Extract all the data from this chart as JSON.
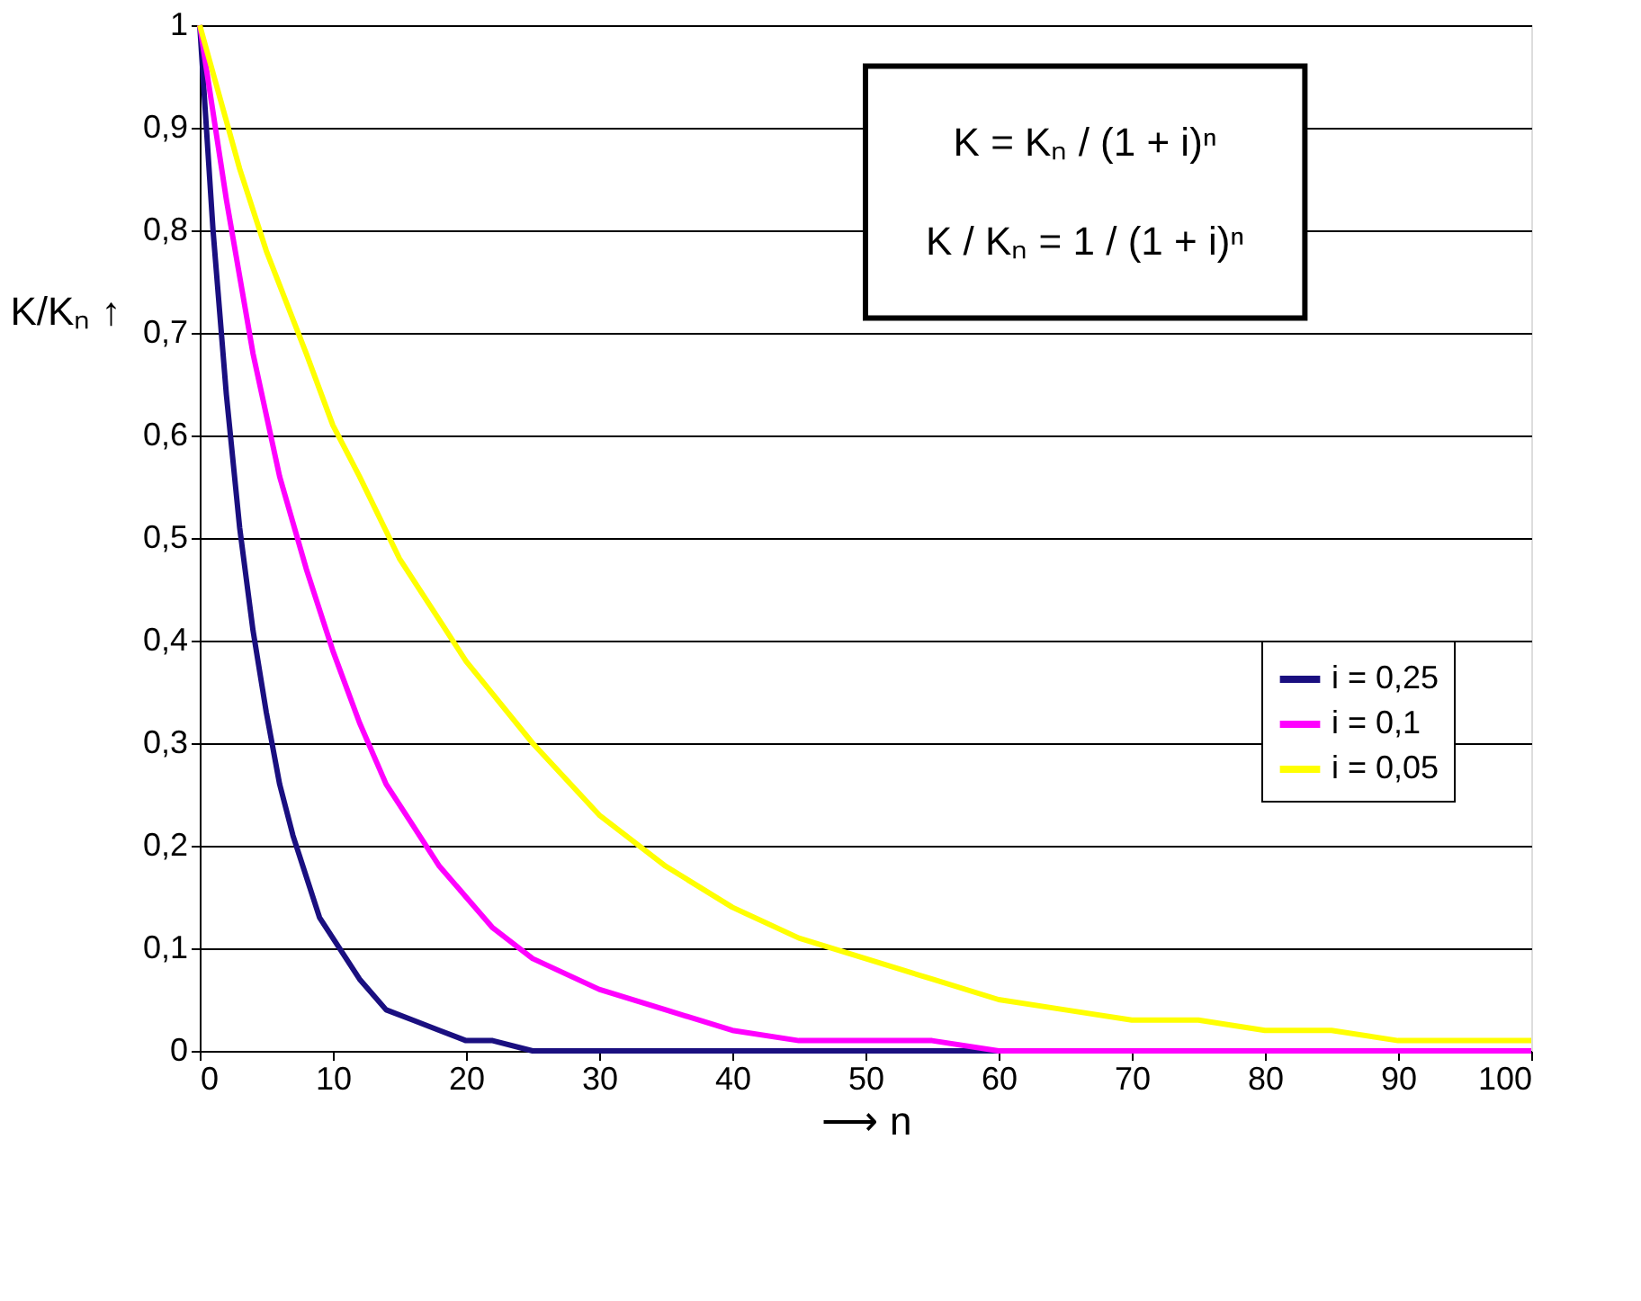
{
  "chart_data": {
    "type": "line",
    "xlabel": "⟶ n",
    "ylabel": "K/Kₙ ↑",
    "xlim": [
      0,
      100
    ],
    "xticks": [
      0,
      10,
      20,
      30,
      40,
      50,
      60,
      70,
      80,
      90,
      100
    ],
    "ylim": [
      0,
      1
    ],
    "yticks": [
      {
        "value": 0,
        "label": "0"
      },
      {
        "value": 0.1,
        "label": "0,1"
      },
      {
        "value": 0.2,
        "label": "0,2"
      },
      {
        "value": 0.3,
        "label": "0,3"
      },
      {
        "value": 0.4,
        "label": "0,4"
      },
      {
        "value": 0.5,
        "label": "0,5"
      },
      {
        "value": 0.6,
        "label": "0,6"
      },
      {
        "value": 0.7,
        "label": "0,7"
      },
      {
        "value": 0.8,
        "label": "0,8"
      },
      {
        "value": 0.9,
        "label": "0,9"
      },
      {
        "value": 1,
        "label": "1"
      }
    ],
    "grid": "y",
    "legend": "right",
    "marker": "none",
    "line_style": "solid",
    "annotations": [
      "K = Kₙ / (1 + i)ⁿ",
      "K / Kₙ = 1 / (1 + i)ⁿ"
    ],
    "series": [
      {
        "name": "i = 0,25",
        "color": "#1a0f80",
        "x": [
          0,
          1,
          2,
          3,
          4,
          5,
          6,
          7,
          8,
          9,
          10,
          12,
          14,
          16,
          18,
          20,
          22,
          25,
          30,
          40,
          50,
          60,
          70
        ],
        "values": [
          1,
          0.8,
          0.64,
          0.51,
          0.41,
          0.33,
          0.26,
          0.21,
          0.17,
          0.13,
          0.11,
          0.07,
          0.04,
          0.03,
          0.02,
          0.01,
          0.01,
          0,
          0,
          0,
          0,
          0,
          0
        ]
      },
      {
        "name": "i = 0,1",
        "color": "#ff00ff",
        "x": [
          0,
          2,
          4,
          6,
          8,
          10,
          12,
          14,
          16,
          18,
          20,
          22,
          25,
          30,
          35,
          40,
          45,
          50,
          55,
          60,
          70,
          80,
          90,
          100
        ],
        "values": [
          1,
          0.83,
          0.68,
          0.56,
          0.47,
          0.39,
          0.32,
          0.26,
          0.22,
          0.18,
          0.15,
          0.12,
          0.09,
          0.06,
          0.04,
          0.02,
          0.01,
          0.01,
          0.01,
          0,
          0,
          0,
          0,
          0
        ]
      },
      {
        "name": "i = 0,05",
        "color": "#ffff00",
        "x": [
          0,
          3,
          5,
          8,
          10,
          12,
          15,
          18,
          20,
          25,
          30,
          35,
          40,
          45,
          50,
          55,
          60,
          65,
          70,
          75,
          80,
          85,
          90,
          95,
          100
        ],
        "values": [
          1,
          0.86,
          0.78,
          0.68,
          0.61,
          0.56,
          0.48,
          0.42,
          0.38,
          0.3,
          0.23,
          0.18,
          0.14,
          0.11,
          0.09,
          0.07,
          0.05,
          0.04,
          0.03,
          0.03,
          0.02,
          0.02,
          0.01,
          0.01,
          0.01
        ]
      }
    ]
  }
}
